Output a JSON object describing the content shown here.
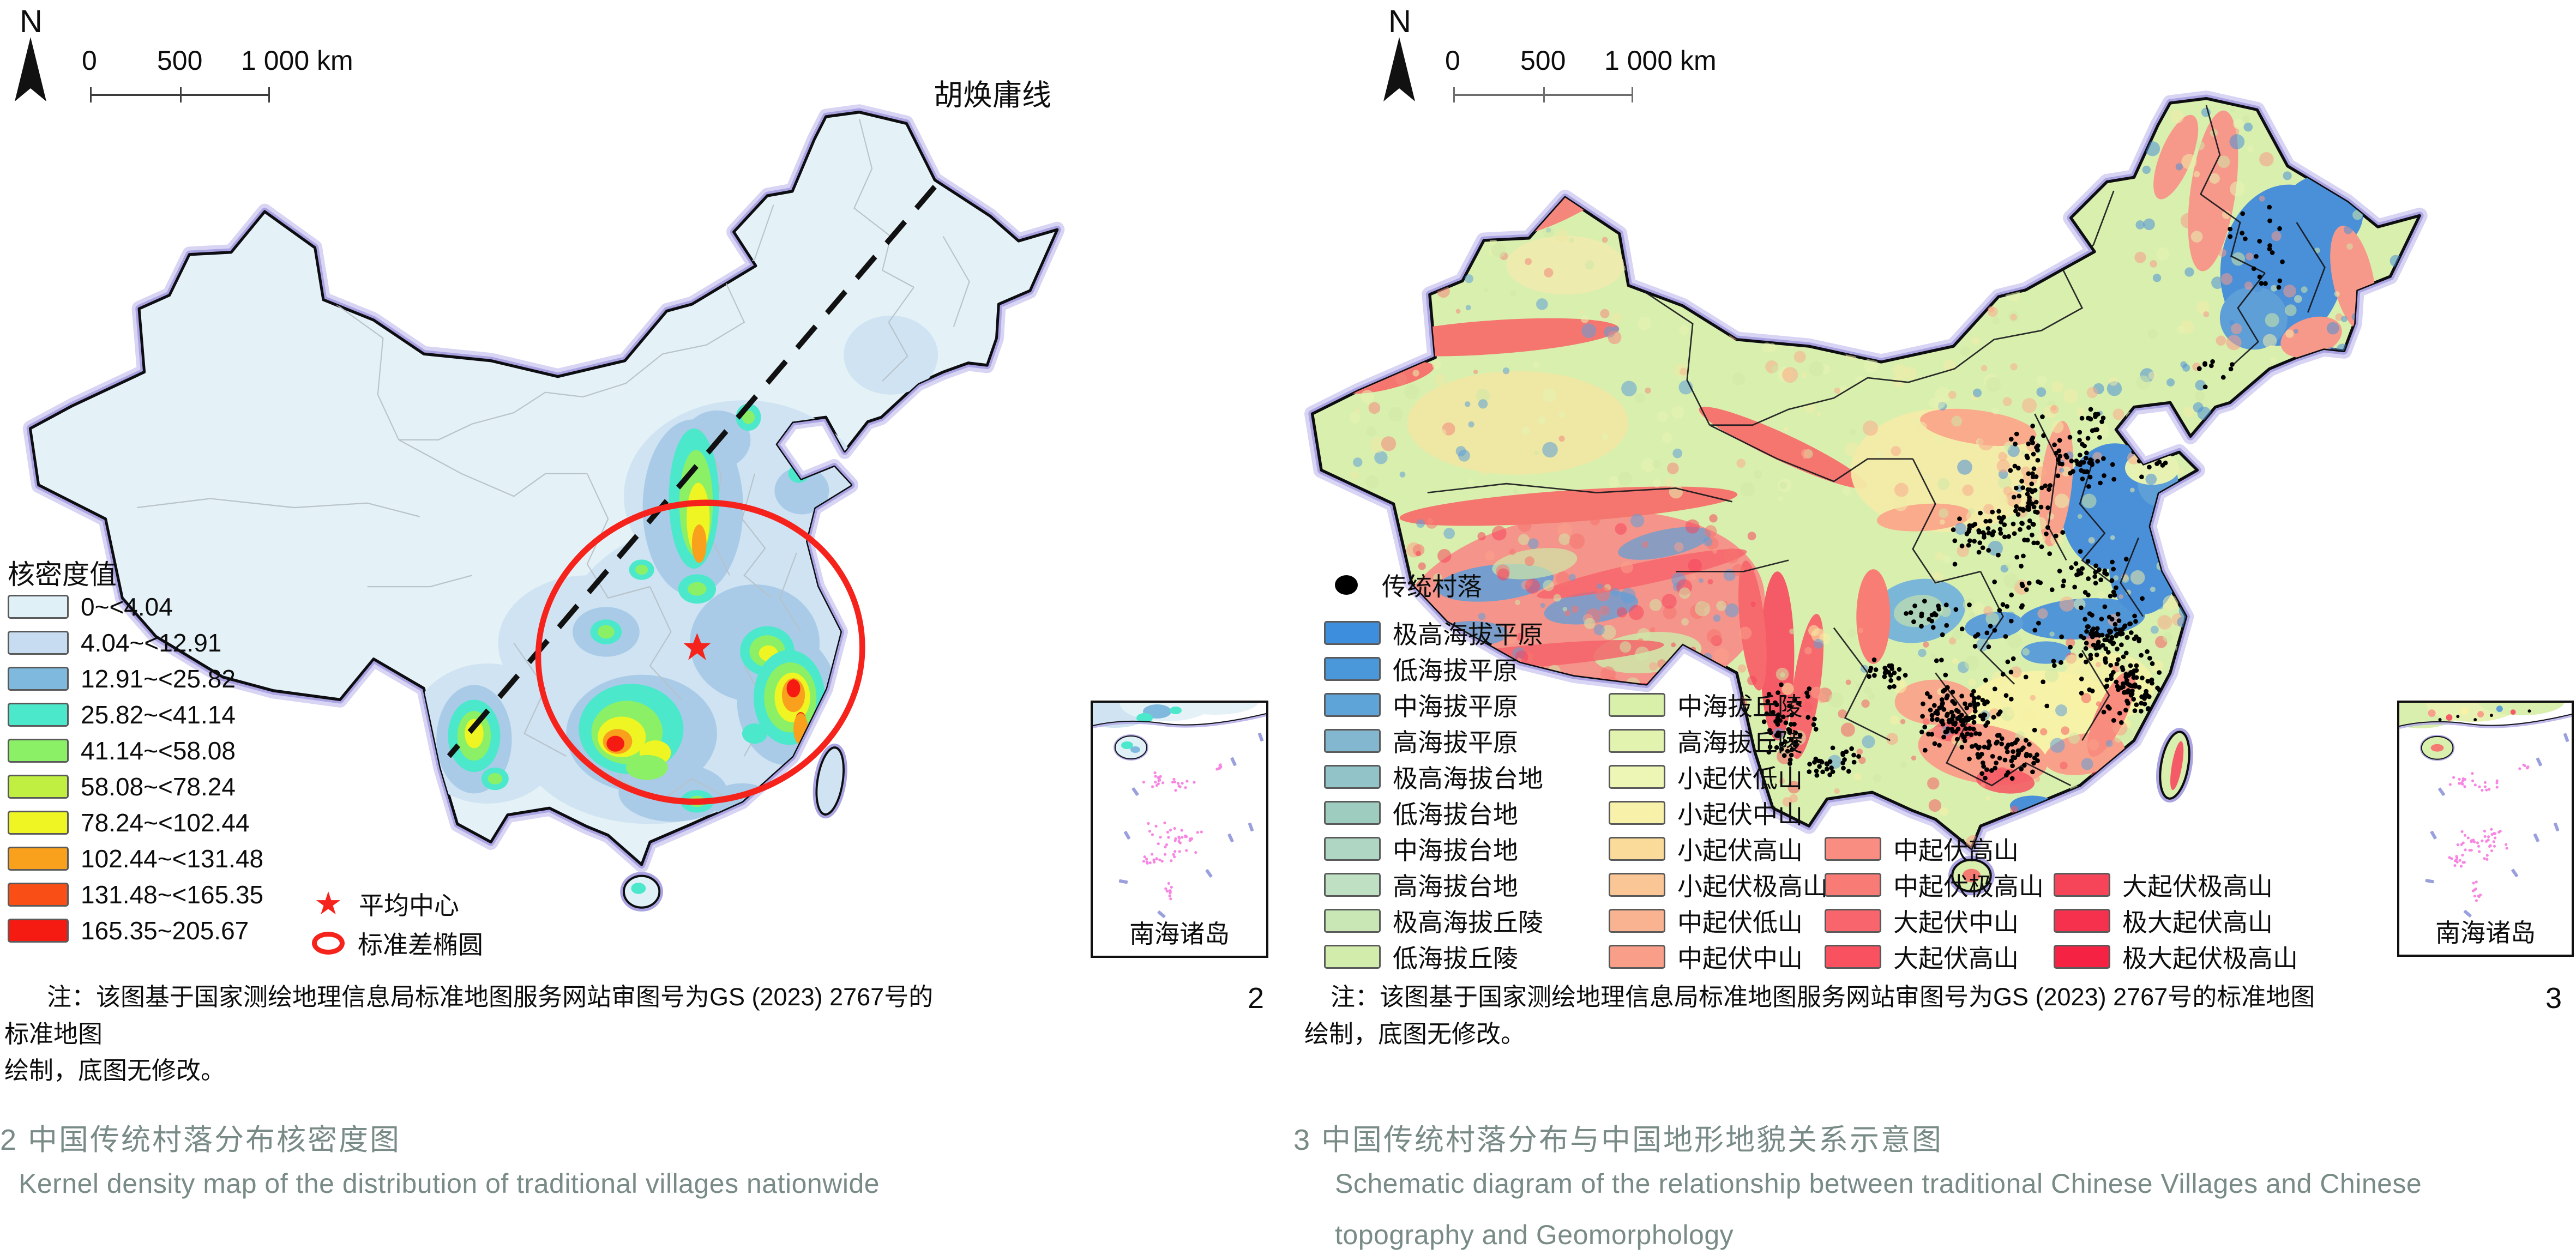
{
  "figure2": {
    "north_label": "N",
    "scalebar": {
      "tick0": "0",
      "tick500": "500",
      "tick1000": "1 000 km"
    },
    "hu_line_label": "胡焕庸线",
    "legend": {
      "title": "核密度值",
      "items": [
        {
          "label": "0~<4.04",
          "color": "#dff0f7"
        },
        {
          "label": "4.04~<12.91",
          "color": "#c7dcf0"
        },
        {
          "label": "12.91~<25.82",
          "color": "#7fbade"
        },
        {
          "label": "25.82~<41.14",
          "color": "#4ce8cb"
        },
        {
          "label": "41.14~<58.08",
          "color": "#8bf066"
        },
        {
          "label": "58.08~<78.24",
          "color": "#c0ef41"
        },
        {
          "label": "78.24~<102.44",
          "color": "#eef522"
        },
        {
          "label": "102.44~<131.48",
          "color": "#f9a01d"
        },
        {
          "label": "131.48~<165.35",
          "color": "#f94e15"
        },
        {
          "label": "165.35~205.67",
          "color": "#f51b12"
        }
      ],
      "mean_center": "平均中心",
      "std_ellipse": "标准差椭圆",
      "marker_color": "#f5231c"
    },
    "inset_label": "南海诸岛",
    "note_line1": "注：该图基于国家测绘地理信息局标准地图服务网站审图号为GS (2023) 2767号的标准地图",
    "note_line2": "绘制，底图无修改。",
    "fig_num": "2",
    "caption_zh": "2 中国传统村落分布核密度图",
    "caption_en": "Kernel density map of the distribution of traditional villages nationwide"
  },
  "figure3": {
    "north_label": "N",
    "scalebar": {
      "tick0": "0",
      "tick500": "500",
      "tick1000": "1 000 km"
    },
    "legend": {
      "village_label": "传统村落",
      "village_color": "#000000",
      "col1": [
        {
          "label": "极高海拔平原",
          "color": "#3e8ede"
        },
        {
          "label": "低海拔平原",
          "color": "#4a97da"
        },
        {
          "label": "中海拔平原",
          "color": "#5fa4d8"
        },
        {
          "label": "高海拔平原",
          "color": "#83b7cf"
        },
        {
          "label": "极高海拔台地",
          "color": "#92c3c8"
        },
        {
          "label": "低海拔台地",
          "color": "#9ecdc0"
        },
        {
          "label": "中海拔台地",
          "color": "#aed6c2"
        },
        {
          "label": "高海拔台地",
          "color": "#bfe0c2"
        },
        {
          "label": "极高海拔丘陵",
          "color": "#c8e7b4"
        },
        {
          "label": "低海拔丘陵",
          "color": "#d2ecac"
        }
      ],
      "col2": [
        {
          "label": "中海拔丘陵",
          "color": "#d9f0ab"
        },
        {
          "label": "高海拔丘陵",
          "color": "#e1f3ae"
        },
        {
          "label": "小起伏低山",
          "color": "#eef6b6"
        },
        {
          "label": "小起伏中山",
          "color": "#f8f1a9"
        },
        {
          "label": "小起伏高山",
          "color": "#fbdb9a"
        },
        {
          "label": "小起伏极高山",
          "color": "#fbc695"
        },
        {
          "label": "中起伏低山",
          "color": "#fab390"
        },
        {
          "label": "中起伏中山",
          "color": "#f99e89"
        }
      ],
      "col3": [
        {
          "label": "中起伏高山",
          "color": "#f98d81"
        },
        {
          "label": "中起伏极高山",
          "color": "#f97b76"
        },
        {
          "label": "大起伏中山",
          "color": "#f9656d"
        },
        {
          "label": "大起伏高山",
          "color": "#f95160"
        }
      ],
      "col4": [
        {
          "label": "大起伏极高山",
          "color": "#f64458"
        },
        {
          "label": "极大起伏高山",
          "color": "#f5314e"
        },
        {
          "label": "极大起伏极高山",
          "color": "#f52243"
        }
      ]
    },
    "inset_label": "南海诸岛",
    "note_line1": "注：该图基于国家测绘地理信息局标准地图服务网站审图号为GS (2023) 2767号的标准地图",
    "note_line2": "绘制，底图无修改。",
    "fig_num": "3",
    "caption_zh": "3 中国传统村落分布与中国地形地貌关系示意图",
    "caption_en_line1": "Schematic diagram of the relationship between traditional Chinese Villages and Chinese",
    "caption_en_line2": "topography and Geomorphology"
  }
}
